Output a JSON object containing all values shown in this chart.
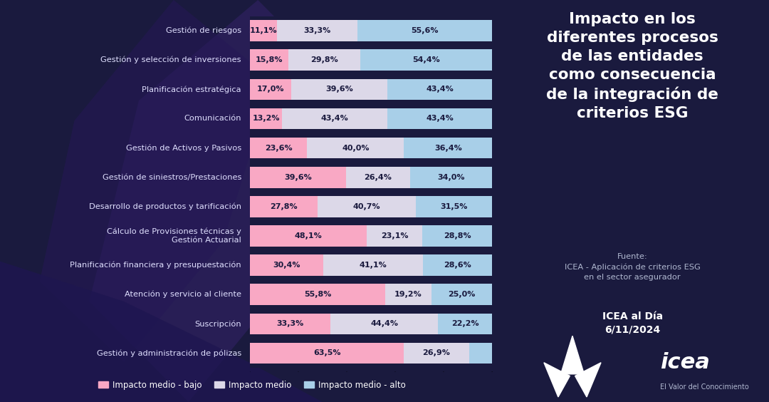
{
  "categories": [
    "Gestión de riesgos",
    "Gestión y selección de inversiones",
    "Planificación estratégica",
    "Comunicación",
    "Gestión de Activos y Pasivos",
    "Gestión de siniestros/Prestaciones",
    "Desarrollo de productos y tarificación",
    "Cálculo de Provisiones técnicas y\nGestión Actuarial",
    "Planificación financiera y presupuestación",
    "Atención y servicio al cliente",
    "Suscripción",
    "Gestión y administración de pólizas"
  ],
  "impacto_medio_bajo": [
    11.1,
    15.8,
    17.0,
    13.2,
    23.6,
    39.6,
    27.8,
    48.1,
    30.4,
    55.8,
    33.3,
    63.5
  ],
  "impacto_medio": [
    33.3,
    29.8,
    39.6,
    43.4,
    40.0,
    26.4,
    40.7,
    23.1,
    41.1,
    19.2,
    44.4,
    26.9
  ],
  "impacto_medio_alto": [
    55.6,
    54.4,
    43.4,
    43.4,
    36.4,
    34.0,
    31.5,
    28.8,
    28.6,
    25.0,
    22.2,
    9.6
  ],
  "color_bajo": "#f9a8c4",
  "color_medio": "#dcd8e8",
  "color_alto": "#a8cfe8",
  "bg_color": "#1a1a3e",
  "bg_color_dark": "#141430",
  "text_color": "#ffffff",
  "bar_text_color": "#1a1a3e",
  "label_text_color": "#e0e0ff",
  "title_text": "Impacto en los\ndiferentes procesos\nde las entidades\ncomo consecuencia\nde la integración de\ncriterios ESG",
  "source_text": "Fuente:\nICEA - Aplicación de criterios ESG\nen el sector asegurador",
  "date_text": "ICEA al Día\n6/11/2024",
  "icea_text": "icea",
  "icea_sub": "El Valor del Conocimiento",
  "legend_bajo": "Impacto medio - bajo",
  "legend_medio": "Impacto medio",
  "legend_alto": "Impacto medio - alto",
  "separator_color": "#2a2a5a",
  "bar_gap_color": "#1e1e48"
}
